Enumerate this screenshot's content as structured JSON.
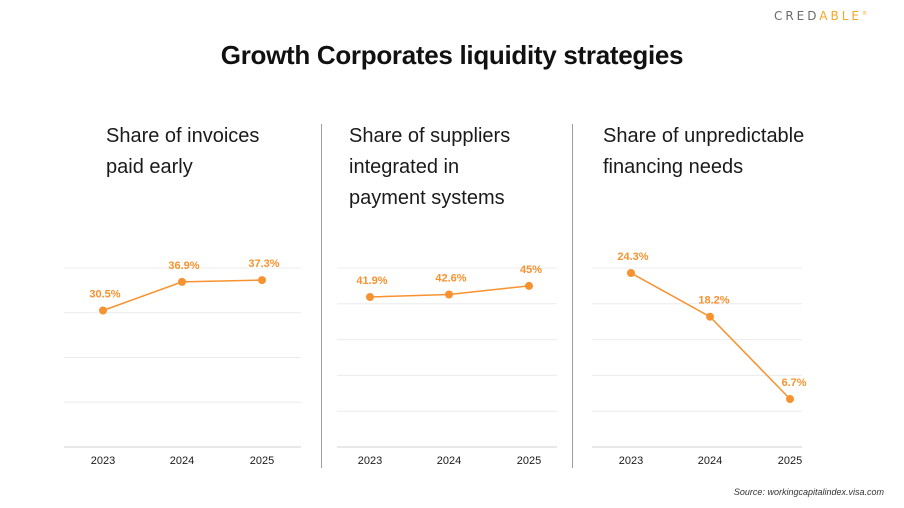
{
  "brand": {
    "name_left": "CRED",
    "name_a": "A",
    "name_right": "BLE",
    "mark": "®"
  },
  "title": "Growth Corporates liquidity strategies",
  "source": "Source: workingcapitalindex.visa.com",
  "colors": {
    "accent": "#F7922F",
    "grid": "#ECECEC",
    "axis": "#D0D0D0",
    "text": "#1A1A1A"
  },
  "chart_data": [
    {
      "type": "line",
      "title": "Share of invoices paid early",
      "title_lines": [
        "Share of invoices",
        "paid early"
      ],
      "categories": [
        "2023",
        "2024",
        "2025"
      ],
      "values": [
        30.5,
        36.9,
        37.3
      ],
      "labels": [
        "30.5%",
        "36.9%",
        "37.3%"
      ],
      "ylim": [
        0,
        40
      ],
      "ystep": 10,
      "grid": true,
      "unit": "%"
    },
    {
      "type": "line",
      "title": "Share of suppliers integrated in payment systems",
      "title_lines": [
        "Share of suppliers",
        "integrated in",
        "payment systems"
      ],
      "categories": [
        "2023",
        "2024",
        "2025"
      ],
      "values": [
        41.9,
        42.6,
        45
      ],
      "labels": [
        "41.9%",
        "42.6%",
        "45%"
      ],
      "ylim": [
        0,
        50
      ],
      "ystep": 10,
      "grid": true,
      "unit": "%"
    },
    {
      "type": "line",
      "title": "Share of unpredictable financing needs",
      "title_lines": [
        "Share of unpredictable",
        "financing needs"
      ],
      "categories": [
        "2023",
        "2024",
        "2025"
      ],
      "values": [
        24.3,
        18.2,
        6.7
      ],
      "labels": [
        "24.3%",
        "18.2%",
        "6.7%"
      ],
      "ylim": [
        0,
        25
      ],
      "ystep": 5,
      "grid": true,
      "unit": "%"
    }
  ]
}
